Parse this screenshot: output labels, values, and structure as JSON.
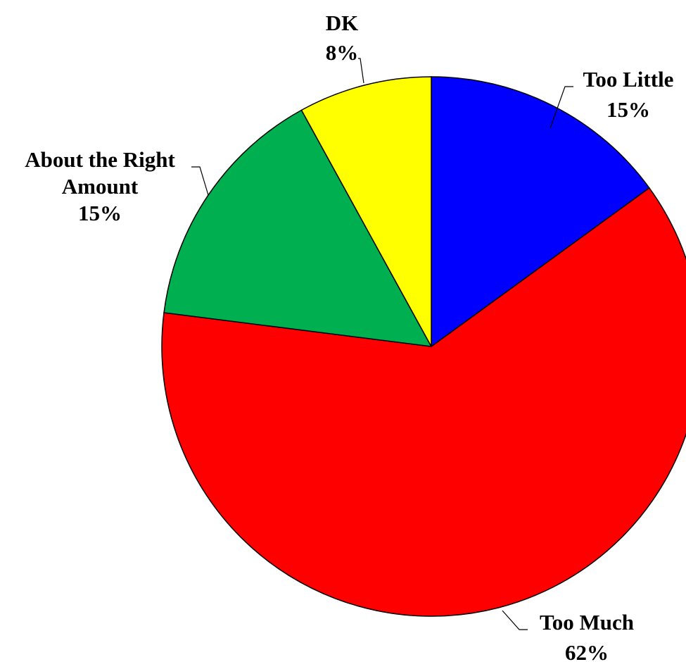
{
  "chart_data": {
    "type": "pie",
    "title": "",
    "start": "12 o'clock, clockwise",
    "slices": [
      {
        "label": "Too Little",
        "lines": [
          "Too Little",
          "15%"
        ],
        "value": 15,
        "color": "#0000FF"
      },
      {
        "label": "Too Much",
        "lines": [
          "Too Much",
          "62%"
        ],
        "value": 62,
        "color": "#FF0000"
      },
      {
        "label": "About the Right Amount",
        "lines": [
          "About the Right",
          "Amount",
          "15%"
        ],
        "value": 15,
        "color": "#00B050"
      },
      {
        "label": "DK",
        "lines": [
          "DK",
          "8%"
        ],
        "value": 8,
        "color": "#FFFF00"
      }
    ]
  }
}
